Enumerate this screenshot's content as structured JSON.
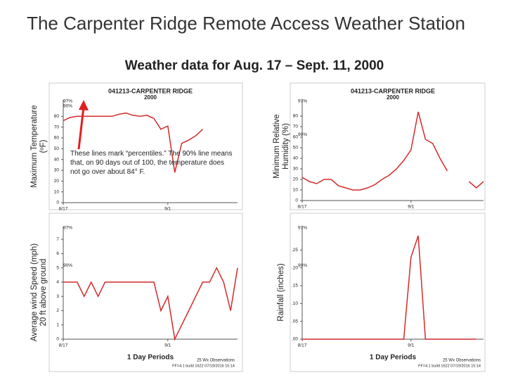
{
  "slide": {
    "title": "The Carpenter Ridge Remote Access Weather Station",
    "subtitle": "Weather data for Aug. 17 – Sept. 11, 2000",
    "annotation": "These lines mark “percentiles.” The 90% line means that, on 90 days out of 100, the temperature does not go over about 84° F."
  },
  "chart_data": [
    {
      "type": "line",
      "title": [
        "041213-CARPENTER RIDGE",
        "2000"
      ],
      "ylabel": [
        "Maximum Temperature",
        "(ºF)"
      ],
      "percentile_labels": [
        "97%",
        "90%"
      ],
      "color": "#d42a2a",
      "categories": [
        "8/17",
        null,
        null,
        null,
        null,
        null,
        null,
        null,
        null,
        null,
        null,
        null,
        null,
        null,
        null,
        "9/1",
        null,
        null,
        null,
        null,
        null,
        null,
        null,
        null,
        null,
        null
      ],
      "values": [
        76,
        79,
        80,
        80,
        80,
        80,
        80,
        80,
        82,
        83,
        81,
        80,
        81,
        78,
        68,
        71,
        28,
        55,
        58,
        62,
        68,
        null,
        null,
        null,
        null,
        null
      ],
      "ylim": [
        0,
        90
      ],
      "yticks": [
        0,
        10,
        20,
        30,
        40,
        50,
        60,
        70,
        80
      ]
    },
    {
      "type": "line",
      "title": [
        "041213-CARPENTER RIDGE",
        "2000"
      ],
      "ylabel": [
        "Minimum Relative",
        "Humidity (%)"
      ],
      "percentile_labels": [
        "97%",
        "90%"
      ],
      "color": "#d42a2a",
      "categories": [
        "8/17",
        null,
        null,
        null,
        null,
        null,
        null,
        null,
        null,
        null,
        null,
        null,
        null,
        null,
        null,
        "9/1",
        null,
        null,
        null,
        null,
        null,
        null,
        null,
        null,
        null,
        null
      ],
      "values": [
        22,
        18,
        16,
        20,
        20,
        14,
        12,
        10,
        10,
        12,
        15,
        20,
        24,
        30,
        38,
        48,
        84,
        58,
        54,
        40,
        28,
        null,
        null,
        18,
        12,
        18
      ],
      "ylim": [
        0,
        90
      ],
      "yticks": [
        0,
        10,
        20,
        30,
        40,
        50,
        60,
        70,
        80
      ]
    },
    {
      "type": "line",
      "ylabel": [
        "Average wind Speed (mph)",
        "20 ft above ground"
      ],
      "percentile_labels": [
        "97%",
        "90%"
      ],
      "color": "#d42a2a",
      "xlabel": "1 Day Periods",
      "note": "25 Wx Observations",
      "footer": "FF=4.1 build 1622 07/19/2016 15:14",
      "categories": [
        "8/17",
        null,
        null,
        null,
        null,
        null,
        null,
        null,
        null,
        null,
        null,
        null,
        null,
        null,
        null,
        "9/1",
        null,
        null,
        null,
        null,
        null,
        null,
        null,
        null,
        null,
        null
      ],
      "values": [
        4,
        4,
        4,
        3,
        4,
        3,
        4,
        4,
        4,
        4,
        4,
        4,
        4,
        4,
        2,
        3,
        0,
        1,
        2,
        3,
        4,
        4,
        5,
        4,
        2,
        5
      ],
      "ylim": [
        0,
        7.5
      ],
      "yticks": [
        0,
        1,
        2,
        3,
        4,
        5,
        6,
        7
      ]
    },
    {
      "type": "line",
      "ylabel": [
        "Rainfall (inches)"
      ],
      "percentile_labels": [
        "97%",
        "90%"
      ],
      "color": "#d42a2a",
      "xlabel": "1 Day Periods",
      "note": "25 Wx Observations",
      "footer": "FF=4.1 build 1622 07/19/2016 15:14",
      "categories": [
        "8/17",
        null,
        null,
        null,
        null,
        null,
        null,
        null,
        null,
        null,
        null,
        null,
        null,
        null,
        null,
        "9/1",
        null,
        null,
        null,
        null,
        null,
        null,
        null,
        null,
        null,
        null
      ],
      "values": [
        0,
        0,
        0,
        0,
        0,
        0,
        0,
        0,
        0,
        0,
        0,
        0,
        0,
        0,
        0,
        0.23,
        0.29,
        0,
        0,
        0,
        0,
        0,
        0,
        0,
        0,
        null
      ],
      "ylim": [
        0,
        0.3
      ],
      "yticks": [
        {
          "value": 0,
          "label": ".00"
        },
        {
          "value": 0.05,
          "label": ".05"
        },
        {
          "value": 0.1,
          "label": ".10"
        },
        {
          "value": 0.15,
          "label": ".15"
        },
        {
          "value": 0.2,
          "label": ".20"
        },
        {
          "value": 0.25,
          "label": ".25"
        }
      ]
    }
  ]
}
